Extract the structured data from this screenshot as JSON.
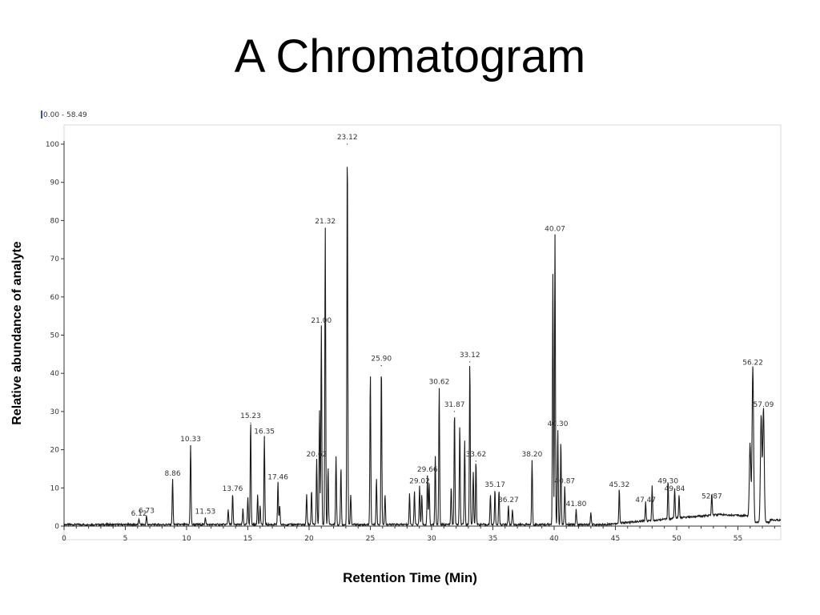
{
  "page": {
    "title": "A Chromatogram"
  },
  "chart_data": {
    "type": "line",
    "range_label": "0.00 - 58.49",
    "xlabel": "Retention Time (Min)",
    "ylabel": "Relative abundance of analyte",
    "xlim": [
      0,
      58.5
    ],
    "ylim": [
      0,
      100
    ],
    "xticks": [
      0,
      5,
      10,
      15,
      20,
      25,
      30,
      35,
      40,
      45,
      50,
      55
    ],
    "yticks": [
      0,
      10,
      20,
      30,
      40,
      50,
      60,
      70,
      80,
      90,
      100
    ],
    "grid": false,
    "line_color": "#1a1a1a",
    "peaks": [
      {
        "rt": 6.12,
        "height": 1.5,
        "label": "6.12"
      },
      {
        "rt": 6.73,
        "height": 2.2,
        "label": "6.73"
      },
      {
        "rt": 8.86,
        "height": 12,
        "label": "8.86"
      },
      {
        "rt": 10.33,
        "height": 21,
        "label": "10.33"
      },
      {
        "rt": 11.53,
        "height": 2,
        "label": "11.53"
      },
      {
        "rt": 13.76,
        "height": 8,
        "label": "13.76"
      },
      {
        "rt": 15.23,
        "height": 27,
        "label": "15.23"
      },
      {
        "rt": 16.35,
        "height": 23,
        "label": "16.35"
      },
      {
        "rt": 17.46,
        "height": 11,
        "label": "17.46"
      },
      {
        "rt": 20.62,
        "height": 17,
        "label": "20.62"
      },
      {
        "rt": 21.0,
        "height": 52,
        "label": "21.00"
      },
      {
        "rt": 21.32,
        "height": 78,
        "label": "21.32"
      },
      {
        "rt": 23.12,
        "height": 100,
        "label": "23.12"
      },
      {
        "rt": 25.9,
        "height": 42,
        "label": "25.90"
      },
      {
        "rt": 29.02,
        "height": 10,
        "label": "29.02"
      },
      {
        "rt": 29.66,
        "height": 13,
        "label": "29.66"
      },
      {
        "rt": 30.62,
        "height": 36,
        "label": "30.62"
      },
      {
        "rt": 31.87,
        "height": 30,
        "label": "31.87"
      },
      {
        "rt": 33.12,
        "height": 43,
        "label": "33.12"
      },
      {
        "rt": 33.62,
        "height": 17,
        "label": "33.62"
      },
      {
        "rt": 35.17,
        "height": 9,
        "label": "35.17"
      },
      {
        "rt": 36.27,
        "height": 5,
        "label": "36.27"
      },
      {
        "rt": 38.2,
        "height": 17,
        "label": "38.20"
      },
      {
        "rt": 40.07,
        "height": 76,
        "label": "40.07"
      },
      {
        "rt": 40.3,
        "height": 25,
        "label": "40.30"
      },
      {
        "rt": 40.87,
        "height": 10,
        "label": "40.87"
      },
      {
        "rt": 41.8,
        "height": 4,
        "label": "41.80"
      },
      {
        "rt": 45.32,
        "height": 9,
        "label": "45.32"
      },
      {
        "rt": 47.47,
        "height": 5,
        "label": "47.47"
      },
      {
        "rt": 49.3,
        "height": 10,
        "label": "49.30"
      },
      {
        "rt": 49.84,
        "height": 8,
        "label": "49.84"
      },
      {
        "rt": 52.87,
        "height": 6,
        "label": "52.87"
      },
      {
        "rt": 56.22,
        "height": 41,
        "label": "56.22"
      },
      {
        "rt": 57.09,
        "height": 30,
        "label": "57.09"
      }
    ],
    "minor_peaks": [
      {
        "rt": 13.4,
        "height": 4
      },
      {
        "rt": 14.6,
        "height": 4
      },
      {
        "rt": 15.0,
        "height": 7
      },
      {
        "rt": 15.8,
        "height": 8
      },
      {
        "rt": 16.0,
        "height": 5
      },
      {
        "rt": 17.6,
        "height": 5
      },
      {
        "rt": 19.8,
        "height": 8
      },
      {
        "rt": 20.2,
        "height": 9
      },
      {
        "rt": 20.85,
        "height": 30
      },
      {
        "rt": 21.55,
        "height": 15
      },
      {
        "rt": 22.2,
        "height": 18
      },
      {
        "rt": 22.6,
        "height": 15
      },
      {
        "rt": 23.4,
        "height": 8
      },
      {
        "rt": 25.0,
        "height": 40
      },
      {
        "rt": 25.5,
        "height": 12
      },
      {
        "rt": 26.2,
        "height": 8
      },
      {
        "rt": 28.2,
        "height": 8
      },
      {
        "rt": 28.6,
        "height": 9
      },
      {
        "rt": 29.2,
        "height": 8
      },
      {
        "rt": 29.8,
        "height": 11
      },
      {
        "rt": 30.3,
        "height": 18
      },
      {
        "rt": 31.6,
        "height": 10
      },
      {
        "rt": 32.3,
        "height": 26
      },
      {
        "rt": 32.7,
        "height": 22
      },
      {
        "rt": 33.4,
        "height": 14
      },
      {
        "rt": 34.8,
        "height": 8
      },
      {
        "rt": 35.5,
        "height": 9
      },
      {
        "rt": 36.6,
        "height": 4
      },
      {
        "rt": 39.9,
        "height": 66
      },
      {
        "rt": 40.55,
        "height": 22
      },
      {
        "rt": 43.0,
        "height": 3
      },
      {
        "rt": 48.0,
        "height": 9
      },
      {
        "rt": 50.2,
        "height": 6
      },
      {
        "rt": 56.0,
        "height": 20
      },
      {
        "rt": 56.9,
        "height": 28
      }
    ]
  }
}
